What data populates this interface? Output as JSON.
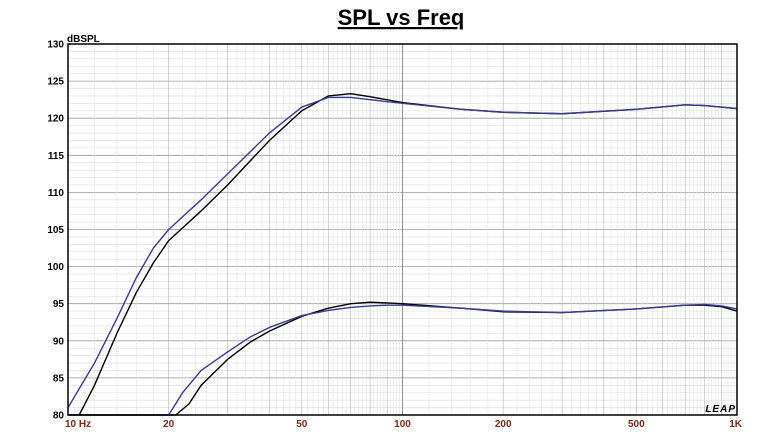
{
  "chart_data": {
    "type": "line",
    "title": "SPL vs Freq",
    "ylabel": "dBSPL",
    "xlabel": "",
    "xscale": "log",
    "xlim": [
      10,
      1000
    ],
    "ylim": [
      80,
      130
    ],
    "grid": true,
    "brand": "LEAP",
    "yticks": [
      {
        "value": 80,
        "label": "80"
      },
      {
        "value": 85,
        "label": "85"
      },
      {
        "value": 90,
        "label": "90"
      },
      {
        "value": 95,
        "label": "95"
      },
      {
        "value": 100,
        "label": "100"
      },
      {
        "value": 105,
        "label": "105"
      },
      {
        "value": 110,
        "label": "110"
      },
      {
        "value": 115,
        "label": "115"
      },
      {
        "value": 120,
        "label": "120"
      },
      {
        "value": 125,
        "label": "125"
      },
      {
        "value": 130,
        "label": "130"
      }
    ],
    "xticks": [
      {
        "value": 10,
        "label": "10  Hz"
      },
      {
        "value": 20,
        "label": "20"
      },
      {
        "value": 50,
        "label": "50"
      },
      {
        "value": 100,
        "label": "100"
      },
      {
        "value": 200,
        "label": "200"
      },
      {
        "value": 500,
        "label": "500"
      },
      {
        "value": 1000,
        "label": "1K"
      }
    ],
    "series": [
      {
        "color": "#000000",
        "x": [
          10.8,
          12,
          14,
          16,
          18,
          20,
          25,
          30,
          40,
          50,
          60,
          70,
          80,
          100,
          150,
          200,
          300,
          500,
          700,
          800,
          1000
        ],
        "y": [
          80,
          84,
          91,
          96.5,
          100.5,
          103.5,
          107.5,
          111,
          117,
          121,
          123,
          123.3,
          122.9,
          122.1,
          121.2,
          120.8,
          120.6,
          121.2,
          121.8,
          121.7,
          121.3
        ]
      },
      {
        "color": "#3a3a9a",
        "x": [
          10,
          12,
          14,
          16,
          18,
          20,
          25,
          30,
          40,
          50,
          60,
          70,
          80,
          100,
          150,
          200,
          300,
          500,
          700,
          800,
          1000
        ],
        "y": [
          81,
          87,
          93,
          98.5,
          102.5,
          105,
          109,
          112.5,
          118,
          121.5,
          122.8,
          122.8,
          122.5,
          122,
          121.2,
          120.8,
          120.6,
          121.2,
          121.8,
          121.7,
          121.3
        ]
      },
      {
        "color": "#000000",
        "x": [
          10,
          18,
          21,
          23,
          25,
          30,
          35,
          40,
          50,
          60,
          70,
          80,
          90,
          100,
          150,
          200,
          300,
          500,
          700,
          800,
          900,
          1000
        ],
        "y": [
          80,
          80,
          80,
          81.5,
          84,
          87.5,
          89.8,
          91.3,
          93.3,
          94.4,
          95,
          95.2,
          95.1,
          95,
          94.4,
          93.9,
          93.8,
          94.3,
          94.8,
          94.8,
          94.6,
          94
        ]
      },
      {
        "color": "#3a3a9a",
        "x": [
          10,
          18,
          20,
          22,
          25,
          30,
          35,
          40,
          50,
          60,
          70,
          80,
          90,
          100,
          150,
          200,
          300,
          500,
          700,
          800,
          900,
          1000
        ],
        "y": [
          80,
          80,
          80,
          83,
          86,
          88.5,
          90.5,
          91.8,
          93.4,
          94.1,
          94.5,
          94.7,
          94.8,
          94.8,
          94.4,
          94,
          93.8,
          94.3,
          94.8,
          94.9,
          94.7,
          94.3
        ]
      }
    ]
  }
}
